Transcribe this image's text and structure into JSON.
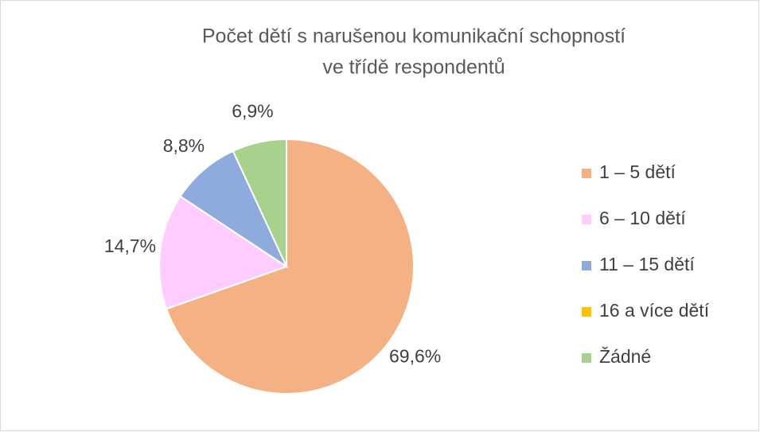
{
  "chart_data": {
    "type": "pie",
    "title": [
      "Počet dětí s narušenou komunikační schopností",
      "ve třídě respondentů"
    ],
    "categories": [
      "1 – 5 dětí",
      "6 – 10 dětí",
      "11 – 15 dětí",
      "16 a více dětí",
      "Žádné"
    ],
    "values": [
      69.6,
      14.7,
      8.8,
      0,
      6.9
    ],
    "value_labels": [
      "69,6%",
      "14,7%",
      "8,8%",
      null,
      "6,9%"
    ],
    "colors": [
      "#f4b183",
      "#ffccff",
      "#8faadc",
      "#ffc000",
      "#a9d18e"
    ],
    "legend": "right"
  }
}
